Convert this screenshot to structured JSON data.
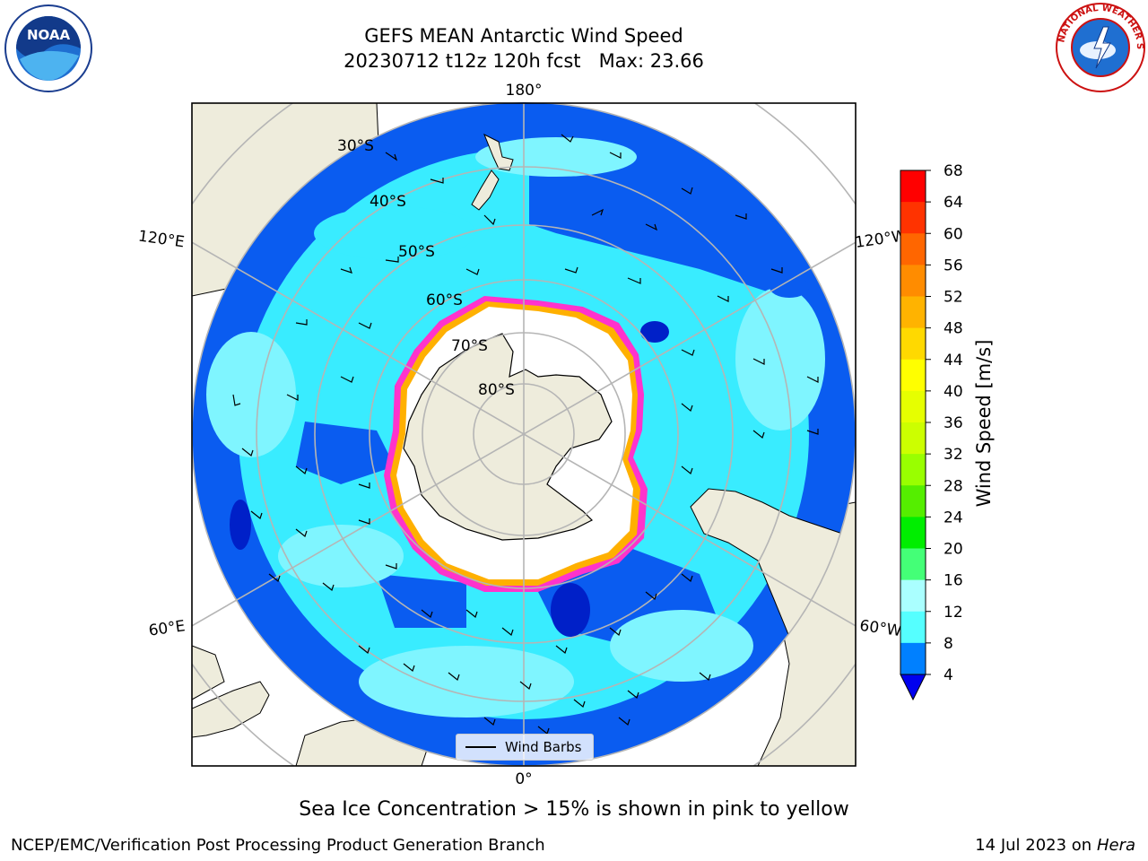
{
  "title": {
    "line1": "GEFS MEAN Antarctic Wind Speed",
    "line2": "20230712 t12z 120h fcst   Max: 23.66"
  },
  "map_labels": {
    "lon_top": "180°",
    "lon_bottom": "0°",
    "lon_upper_left": "120°E",
    "lon_upper_right": "120°W",
    "lon_lower_left": "60°E",
    "lon_lower_right": "60°W",
    "lat_30": "30°S",
    "lat_40": "40°S",
    "lat_50": "50°S",
    "lat_60": "60°S",
    "lat_70": "70°S",
    "lat_80": "80°S"
  },
  "legend": {
    "wind_barbs": "Wind Barbs"
  },
  "colorbar": {
    "label": "Wind Speed [m/s]",
    "ticks": [
      "68",
      "64",
      "60",
      "56",
      "52",
      "48",
      "44",
      "40",
      "36",
      "32",
      "28",
      "24",
      "20",
      "16",
      "12",
      "8",
      "4"
    ],
    "colors": [
      "#ff0000",
      "#ff3300",
      "#ff6600",
      "#ff8c00",
      "#ffb300",
      "#ffd900",
      "#ffff00",
      "#e6ff00",
      "#ccff00",
      "#99ff00",
      "#55ee00",
      "#00ee00",
      "#44ff77",
      "#aaffff",
      "#55ffff",
      "#00ffff",
      "#0080ff"
    ],
    "below_color": "#0000ee"
  },
  "colors": {
    "ocean_dark": "#0a5cf0",
    "ocean_mid": "#39ecff",
    "ocean_light": "#7ff5ff",
    "land": "#eeecdc",
    "ice": "#ffffff",
    "ice_edge": "#ff33cc",
    "grid": "#b5b5b5"
  },
  "notes": {
    "sea_ice": "Sea Ice Concentration > 15% is shown in pink to yellow",
    "producer": "NCEP/EMC/Verification Post Processing Product Generation Branch",
    "date_prefix": "14 Jul 2023 on ",
    "machine": "Hera"
  },
  "logos": {
    "noaa": "NOAA",
    "nws": "NATIONAL WEATHER SERVICE"
  }
}
